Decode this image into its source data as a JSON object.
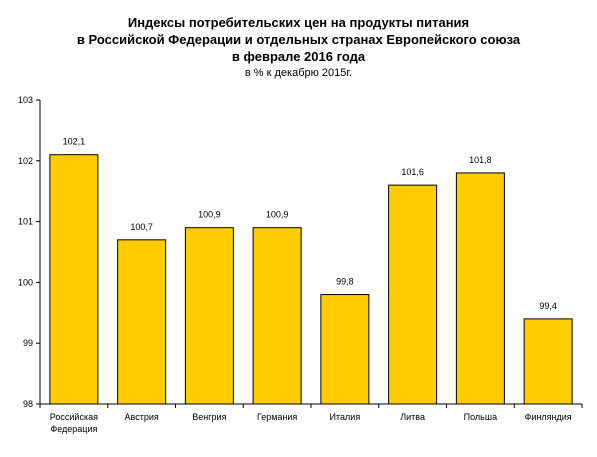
{
  "chart_data": {
    "type": "bar",
    "title_lines": [
      "Индексы потребительских цен на продукты питания",
      "в Российской Федерации и отдельных странах Европейского союза",
      "в феврале 2016 года"
    ],
    "subtitle": "в % к декабрю 2015г.",
    "xlabel": "",
    "ylabel": "",
    "ylim": [
      98,
      103
    ],
    "yticks": [
      98,
      99,
      100,
      101,
      102,
      103
    ],
    "categories": [
      [
        "Российская",
        "Федерация"
      ],
      [
        "Австрия"
      ],
      [
        "Венгрия"
      ],
      [
        "Германия"
      ],
      [
        "Италия"
      ],
      [
        "Литва"
      ],
      [
        "Польша"
      ],
      [
        "Финляндия"
      ]
    ],
    "values": [
      102.1,
      100.7,
      100.9,
      100.9,
      99.8,
      101.6,
      101.8,
      99.4
    ],
    "data_labels": [
      "102,1",
      "100,7",
      "100,9",
      "100,9",
      "99,8",
      "101,6",
      "101,8",
      "99,4"
    ],
    "bar_color": "#FFCC00",
    "bar_outline": "#000000",
    "grid": false,
    "legend": false
  }
}
